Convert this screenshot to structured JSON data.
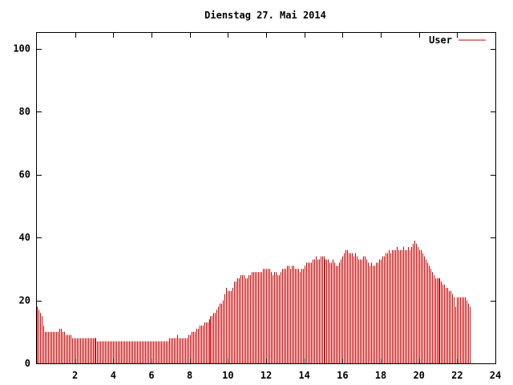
{
  "chart_data": {
    "type": "bar",
    "title": "Dienstag 27. Mai 2014",
    "xlabel": "",
    "ylabel": "",
    "xlim": [
      0,
      24
    ],
    "ylim": [
      0,
      105
    ],
    "xticks": [
      2,
      4,
      6,
      8,
      10,
      12,
      14,
      16,
      18,
      20,
      22,
      24
    ],
    "yticks": [
      0,
      20,
      40,
      60,
      80,
      100
    ],
    "grid": false,
    "legend_position": "top-right",
    "series": [
      {
        "name": "User",
        "color": "#cc0000",
        "interval_minutes": 5,
        "values": [
          18,
          17,
          16,
          15,
          12,
          10,
          10,
          10,
          10,
          10,
          10,
          10,
          10,
          10,
          11,
          11,
          10,
          10,
          9,
          9,
          9,
          9,
          8,
          8,
          8,
          8,
          8,
          8,
          8,
          8,
          8,
          8,
          8,
          8,
          8,
          8,
          8,
          8,
          7,
          7,
          7,
          7,
          7,
          7,
          7,
          7,
          7,
          7,
          7,
          7,
          7,
          7,
          7,
          7,
          7,
          7,
          7,
          7,
          7,
          7,
          7,
          7,
          7,
          7,
          7,
          7,
          7,
          7,
          7,
          7,
          7,
          7,
          7,
          7,
          7,
          7,
          7,
          7,
          7,
          7,
          7,
          7,
          7,
          8,
          8,
          8,
          8,
          8,
          9,
          8,
          8,
          8,
          8,
          8,
          8,
          9,
          9,
          10,
          10,
          10,
          11,
          11,
          12,
          12,
          12,
          13,
          13,
          13,
          14,
          15,
          15,
          16,
          16,
          17,
          18,
          19,
          19,
          20,
          22,
          24,
          23,
          23,
          23,
          24,
          26,
          26,
          27,
          27,
          28,
          28,
          28,
          27,
          27,
          28,
          28,
          29,
          29,
          29,
          29,
          29,
          29,
          29,
          30,
          30,
          30,
          30,
          30,
          29,
          28,
          29,
          29,
          28,
          28,
          29,
          30,
          30,
          30,
          31,
          31,
          30,
          31,
          31,
          30,
          30,
          30,
          29,
          30,
          30,
          31,
          32,
          32,
          32,
          32,
          33,
          33,
          34,
          33,
          33,
          34,
          34,
          34,
          33,
          33,
          33,
          32,
          32,
          33,
          32,
          31,
          31,
          32,
          33,
          34,
          35,
          36,
          36,
          35,
          35,
          35,
          34,
          35,
          34,
          33,
          33,
          33,
          34,
          34,
          33,
          32,
          31,
          32,
          31,
          31,
          32,
          32,
          33,
          33,
          34,
          34,
          35,
          35,
          36,
          35,
          36,
          36,
          36,
          37,
          36,
          36,
          36,
          37,
          36,
          36,
          37,
          36,
          37,
          38,
          39,
          38,
          37,
          36,
          36,
          35,
          34,
          33,
          32,
          31,
          30,
          29,
          28,
          27,
          27,
          27,
          27,
          26,
          25,
          25,
          24,
          24,
          23,
          23,
          22,
          21,
          18,
          21,
          21,
          21,
          21,
          21,
          21,
          20,
          19,
          18
        ]
      }
    ]
  }
}
